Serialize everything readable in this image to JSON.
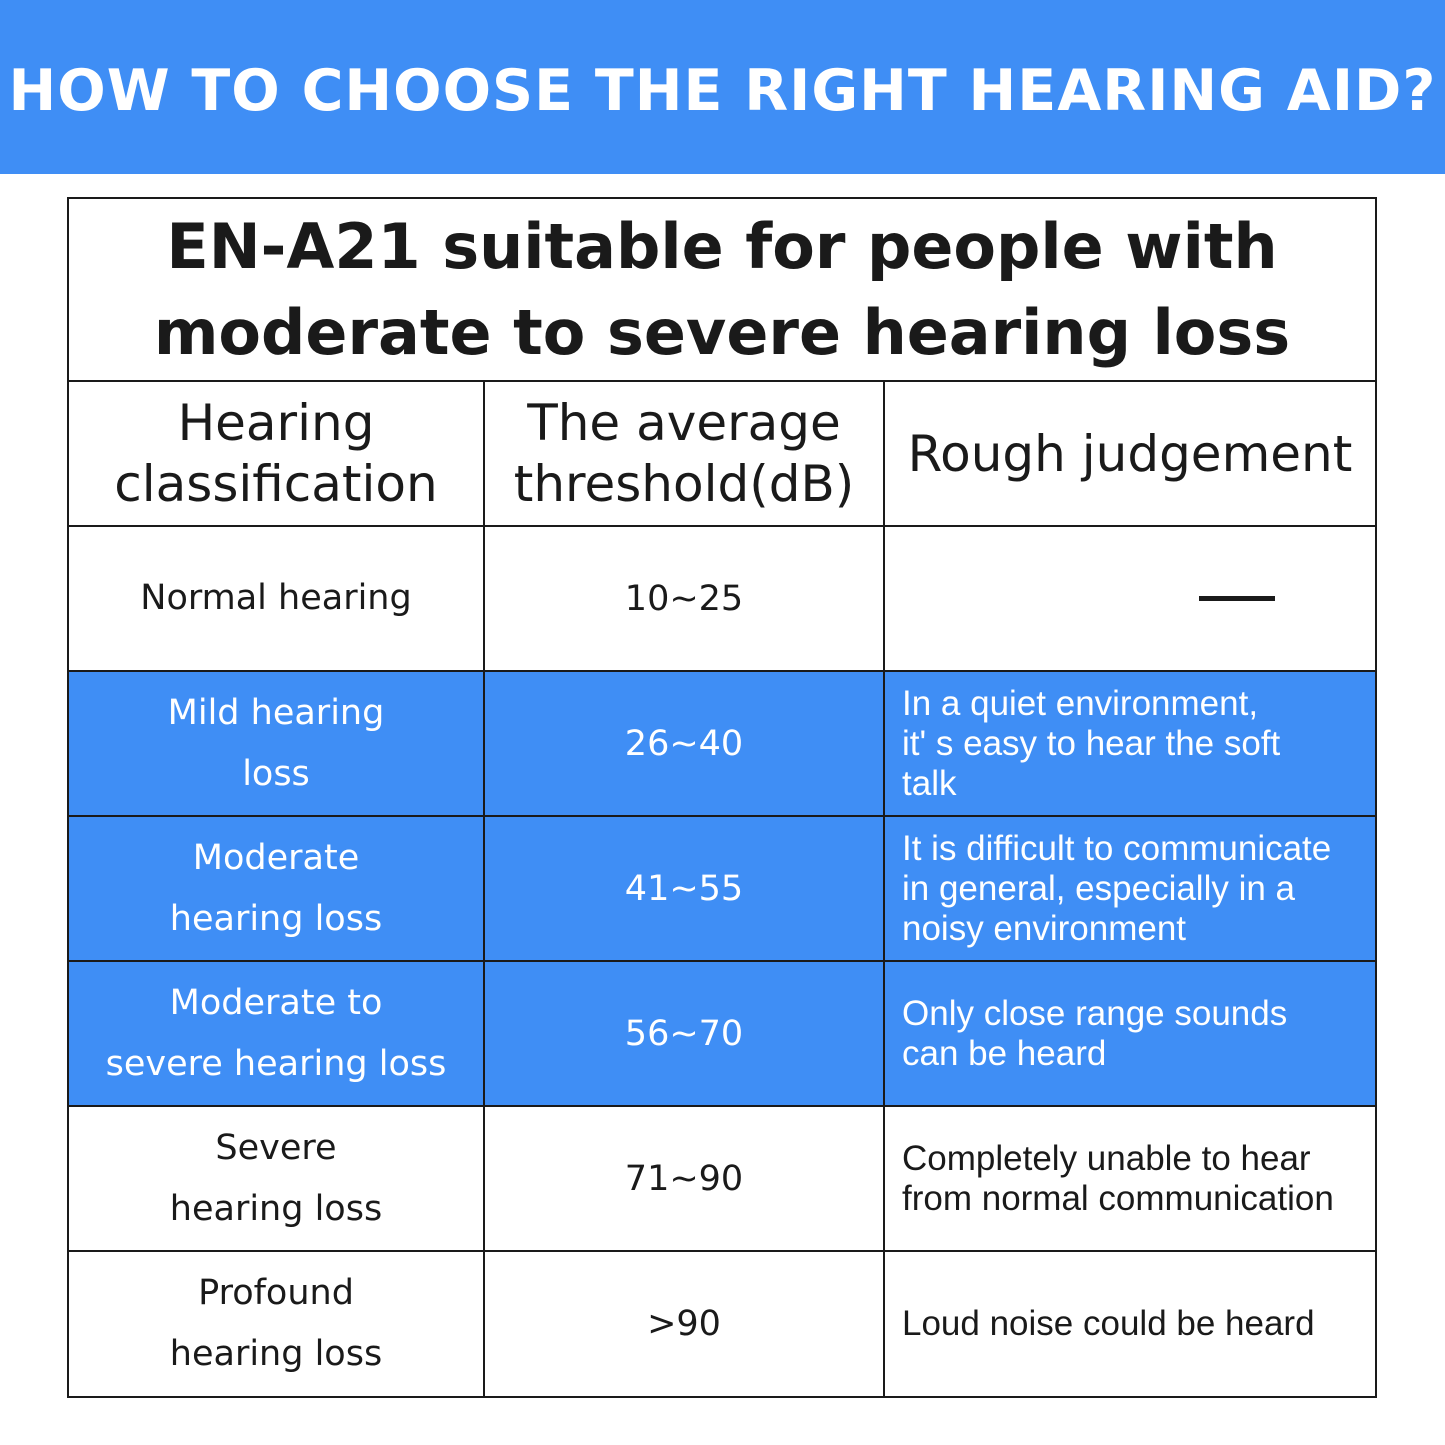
{
  "banner": {
    "title": "HOW TO CHOOSE THE RIGHT HEARING AID?"
  },
  "caption": {
    "line1": "EN-A21 suitable for people with",
    "line2": "moderate to severe hearing loss"
  },
  "headers": {
    "classification": [
      "Hearing",
      "classification"
    ],
    "threshold": [
      "The average",
      "threshold(dB)"
    ],
    "judgement": "Rough judgement"
  },
  "rows": [
    {
      "classification": [
        "Normal hearing"
      ],
      "threshold": "10~25",
      "judgement": [
        "—"
      ],
      "highlight": false
    },
    {
      "classification": [
        "Mild hearing",
        "loss"
      ],
      "threshold": "26~40",
      "judgement": [
        "In a quiet environment,",
        "it' s easy to hear the soft",
        "talk"
      ],
      "highlight": true
    },
    {
      "classification": [
        "Moderate",
        "hearing loss"
      ],
      "threshold": "41~55",
      "judgement": [
        "It is difficult to communicate",
        "in general, especially in a",
        "noisy environment"
      ],
      "highlight": true
    },
    {
      "classification": [
        "Moderate to",
        "severe hearing loss"
      ],
      "threshold": "56~70",
      "judgement": [
        "Only close range sounds",
        "can be heard"
      ],
      "highlight": true
    },
    {
      "classification": [
        "Severe",
        "hearing loss"
      ],
      "threshold": "71~90",
      "judgement": [
        "Completely unable to hear",
        "from normal communication"
      ],
      "highlight": false
    },
    {
      "classification": [
        "Profound",
        "hearing loss"
      ],
      "threshold": ">90",
      "judgement": [
        "Loud noise could be heard"
      ],
      "highlight": false
    }
  ],
  "colors": {
    "accent": "#3f8ef5",
    "text": "#1a1a1a",
    "highlight_text": "#ffffff"
  }
}
